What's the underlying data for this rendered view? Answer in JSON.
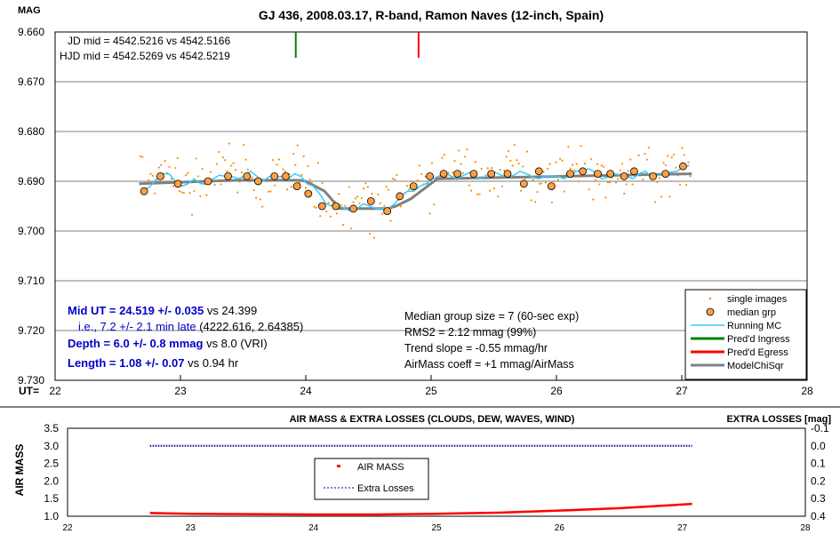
{
  "top": {
    "title": "GJ 436, 2008.03.17, R-band, Ramon Naves (12-inch, Spain)",
    "ylabel": "MAG",
    "xlabel": "UT=",
    "jd_line": "JD mid = 4542.5216 vs 4542.5166",
    "hjd_line": "HJD mid = 4542.5269 vs 4542.5219",
    "results": [
      {
        "bold": "Mid UT = 24.519 +/- 0.035",
        "rest": " vs 24.399"
      },
      {
        "bold": "",
        "blue": "  i.e., 7.2 +/- 2.1 min late",
        "rest": " (4222.616, 2.64385)"
      },
      {
        "bold": "Depth = 6.0 +/- 0.8 mmag",
        "rest": " vs 8.0 (VRI)"
      },
      {
        "bold": "Length = 1.08 +/- 0.07",
        "rest": " vs 0.94 hr"
      }
    ],
    "stats": [
      "Median group size = 7 (60-sec exp)",
      "RMS2 = 2.12 mmag (99%)",
      "Trend slope = -0.55 mmag/hr",
      "AirMass coeff = +1 mmag/AirMass"
    ],
    "legend": [
      "single images",
      "median grp",
      "Running MC",
      "Pred'd Ingress",
      "Pred'd Egress",
      "ModelChiSqr"
    ]
  },
  "bottom": {
    "title": "AIR MASS & EXTRA LOSSES (CLOUDS, DEW, WAVES, WIND)",
    "ylabel": "AIR MASS",
    "y2label": "EXTRA LOSSES [mag]",
    "legend": [
      "AIR MASS",
      "Extra Losses"
    ]
  },
  "colors": {
    "single": "#ff8c00",
    "median_fill": "#ffa040",
    "running": "#33ccff",
    "ingress": "#008000",
    "egress": "#ff0000",
    "model": "#808080",
    "airmass": "#ff0000",
    "extra": "#000099",
    "results_text": "#0000cc"
  },
  "chart_data": [
    {
      "type": "scatter",
      "title": "GJ 436, 2008.03.17, R-band, Ramon Naves (12-inch, Spain)",
      "xlabel": "UT=",
      "ylabel": "MAG",
      "xlim": [
        22,
        28
      ],
      "ylim": [
        9.73,
        9.66
      ],
      "x_ticks": [
        22,
        23,
        24,
        25,
        26,
        27,
        28
      ],
      "y_ticks": [
        9.66,
        9.67,
        9.68,
        9.69,
        9.7,
        9.71,
        9.72,
        9.73
      ],
      "ingress_ut": 23.92,
      "egress_ut": 24.9,
      "median_grp": {
        "x": [
          22.71,
          22.84,
          22.98,
          23.22,
          23.38,
          23.53,
          23.62,
          23.75,
          23.84,
          23.93,
          24.02,
          24.13,
          24.24,
          24.38,
          24.52,
          24.65,
          24.75,
          24.86,
          24.99,
          25.1,
          25.21,
          25.34,
          25.48,
          25.61,
          25.74,
          25.86,
          25.96,
          26.11,
          26.21,
          26.33,
          26.43,
          26.54,
          26.62,
          26.77,
          26.87,
          27.01
        ],
        "y": [
          9.692,
          9.689,
          9.6905,
          9.69,
          9.689,
          9.689,
          9.69,
          9.689,
          9.689,
          9.691,
          9.6925,
          9.695,
          9.695,
          9.6955,
          9.694,
          9.696,
          9.693,
          9.691,
          9.689,
          9.6885,
          9.6885,
          9.6885,
          9.6885,
          9.6885,
          9.6905,
          9.688,
          9.691,
          9.6885,
          9.688,
          9.6885,
          9.6885,
          9.689,
          9.688,
          9.689,
          9.6885,
          9.687
        ]
      },
      "model": {
        "x": [
          22.67,
          23.45,
          23.95,
          24.0,
          24.15,
          24.27,
          24.65,
          24.72,
          24.84,
          25.05,
          27.08
        ],
        "y": [
          9.6905,
          9.6898,
          9.6898,
          9.69,
          9.692,
          9.6955,
          9.6955,
          9.695,
          9.6935,
          9.6895,
          9.6885
        ]
      },
      "running_mc": {
        "x": [
          22.71,
          22.76,
          22.81,
          22.86,
          22.91,
          22.96,
          23.01,
          23.06,
          23.11,
          23.16,
          23.21,
          23.26,
          23.31,
          23.36,
          23.41,
          23.46,
          23.51,
          23.56,
          23.61,
          23.66,
          23.71,
          23.76,
          23.81,
          23.86,
          23.91,
          23.96,
          24.01,
          24.06,
          24.11,
          24.16,
          24.21,
          24.26,
          24.31,
          24.36,
          24.41,
          24.46,
          24.51,
          24.56,
          24.61,
          24.66,
          24.71,
          24.76,
          24.81,
          24.86,
          24.91,
          24.96,
          25.01,
          25.06,
          25.11,
          25.16,
          25.21,
          25.26,
          25.31,
          25.36,
          25.41,
          25.46,
          25.51,
          25.56,
          25.61,
          25.66,
          25.71,
          25.76,
          25.81,
          25.86,
          25.91,
          25.96,
          26.01,
          26.06,
          26.11,
          26.16,
          26.21,
          26.26,
          26.31,
          26.36,
          26.41,
          26.46,
          26.51,
          26.56,
          26.61,
          26.66,
          26.71,
          26.76,
          26.81,
          26.86,
          26.91,
          26.96,
          27.01,
          27.06
        ],
        "y": [
          9.692,
          9.691,
          9.6895,
          9.6885,
          9.6885,
          9.69,
          9.691,
          9.6905,
          9.6895,
          9.6905,
          9.6905,
          9.6895,
          9.6888,
          9.689,
          9.689,
          9.6895,
          9.689,
          9.688,
          9.689,
          9.69,
          9.689,
          9.6892,
          9.689,
          9.6895,
          9.6885,
          9.689,
          9.6905,
          9.691,
          9.6925,
          9.6945,
          9.695,
          9.6948,
          9.6955,
          9.696,
          9.6955,
          9.6945,
          9.695,
          9.6955,
          9.6955,
          9.6955,
          9.6945,
          9.693,
          9.692,
          9.692,
          9.691,
          9.6905,
          9.6895,
          9.689,
          9.6882,
          9.689,
          9.6895,
          9.6888,
          9.6882,
          9.6892,
          9.6895,
          9.6885,
          9.6882,
          9.6888,
          9.6892,
          9.6888,
          9.688,
          9.6885,
          9.6892,
          9.6895,
          9.689,
          9.689,
          9.689,
          9.6895,
          9.6888,
          9.688,
          9.6878,
          9.6875,
          9.6882,
          9.6895,
          9.6892,
          9.6885,
          9.6888,
          9.689,
          9.6895,
          9.6885,
          9.688,
          9.6892,
          9.6888,
          9.6885,
          9.6882,
          9.688,
          9.6872,
          9.6868
        ]
      }
    },
    {
      "type": "line",
      "title": "AIR MASS & EXTRA LOSSES (CLOUDS, DEW, WAVES, WIND)",
      "ylabel": "AIR MASS",
      "y2label": "EXTRA LOSSES [mag]",
      "xlim": [
        22,
        28
      ],
      "ylim": [
        1.0,
        3.5
      ],
      "y2lim": [
        -0.1,
        0.4
      ],
      "x_ticks": [
        22,
        23,
        24,
        25,
        26,
        27,
        28
      ],
      "y_ticks": [
        1.0,
        1.5,
        2.0,
        2.5,
        3.0,
        3.5
      ],
      "y2_ticks": [
        "-0.1",
        "0.0",
        "0.1",
        "0.2",
        "0.3",
        "0.4"
      ],
      "series": [
        {
          "name": "AIR MASS",
          "axis": "left",
          "x": [
            22.67,
            23.0,
            23.5,
            24.0,
            24.5,
            25.0,
            25.5,
            26.0,
            26.5,
            27.08
          ],
          "y": [
            1.09,
            1.07,
            1.06,
            1.05,
            1.05,
            1.07,
            1.1,
            1.16,
            1.23,
            1.35
          ]
        },
        {
          "name": "Extra Losses",
          "axis": "right",
          "x": [
            22.67,
            27.08
          ],
          "y": [
            0.0,
            0.0
          ]
        }
      ]
    }
  ]
}
